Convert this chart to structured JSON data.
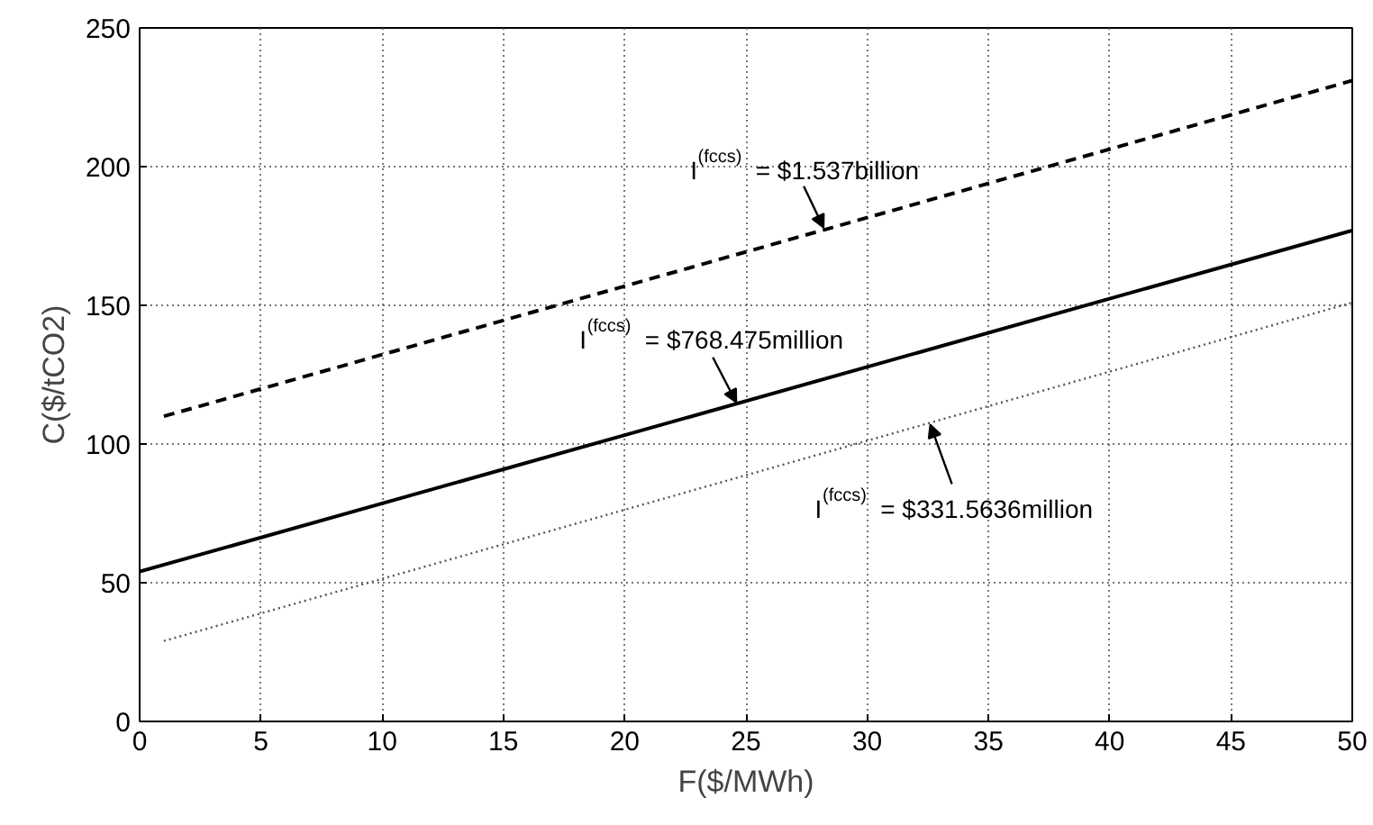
{
  "chart_data": {
    "type": "line",
    "xlabel": "F($/MWh)",
    "ylabel": "C($/tCO2)",
    "xlim": [
      0,
      50
    ],
    "ylim": [
      0,
      250
    ],
    "xticks": [
      0,
      5,
      10,
      15,
      20,
      25,
      30,
      35,
      40,
      45,
      50
    ],
    "yticks": [
      0,
      50,
      100,
      150,
      200,
      250
    ],
    "grid": true,
    "series": [
      {
        "color": "#000000",
        "line_style": "dashed",
        "x": [
          1,
          50
        ],
        "values": [
          110,
          231
        ]
      },
      {
        "color": "#000000",
        "line_style": "solid",
        "x": [
          0,
          50
        ],
        "values": [
          54,
          177
        ]
      },
      {
        "color": "#555555",
        "line_style": "dotted",
        "x": [
          1,
          50
        ],
        "values": [
          29,
          151
        ]
      }
    ],
    "annotations": [
      {
        "text": "I$^{(fccs)}$ = $1.537billion",
        "x": 28.2,
        "y": 178
      },
      {
        "text": "I$^{(fccs)}$ = $768.475million",
        "x": 24.6,
        "y": 115
      },
      {
        "text": "I$^{(fccs)}$ = $331.5636million",
        "x": 32.6,
        "y": 107
      }
    ]
  }
}
